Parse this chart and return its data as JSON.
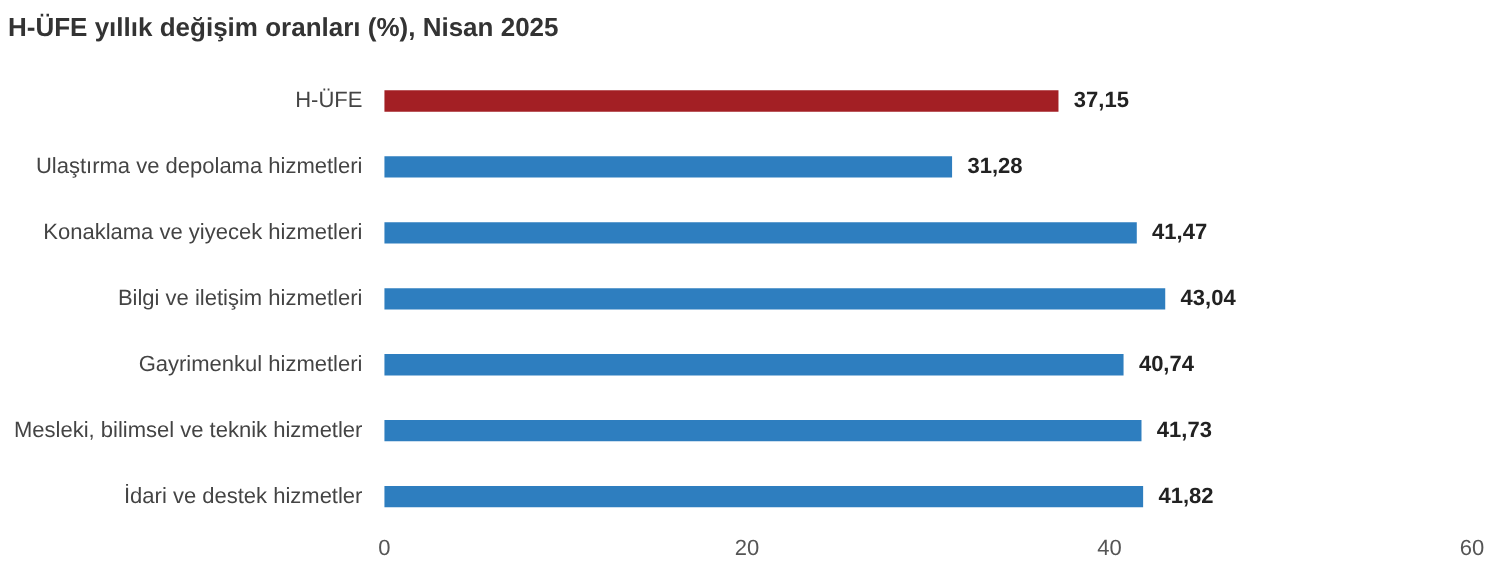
{
  "chart_data": {
    "type": "bar",
    "orientation": "horizontal",
    "title": "H-ÜFE yıllık değişim oranları (%), Nisan 2025",
    "categories": [
      "H-ÜFE",
      "Ulaştırma ve depolama hizmetleri",
      "Konaklama ve yiyecek hizmetleri",
      "Bilgi ve iletişim hizmetleri",
      "Gayrimenkul hizmetleri",
      "Mesleki, bilimsel ve teknik hizmetler",
      "İdari ve destek hizmetler"
    ],
    "values": [
      37.15,
      31.28,
      41.47,
      43.04,
      40.74,
      41.73,
      41.82
    ],
    "colors": [
      "#a31f24",
      "#2e7ebf",
      "#2e7ebf",
      "#2e7ebf",
      "#2e7ebf",
      "#2e7ebf",
      "#2e7ebf"
    ],
    "value_labels": [
      "37,15",
      "31,28",
      "41,47",
      "43,04",
      "40,74",
      "41,73",
      "41,82"
    ],
    "xlim": [
      0,
      60
    ],
    "xticks": [
      0,
      20,
      40,
      60
    ],
    "grid": false,
    "legend": false
  }
}
